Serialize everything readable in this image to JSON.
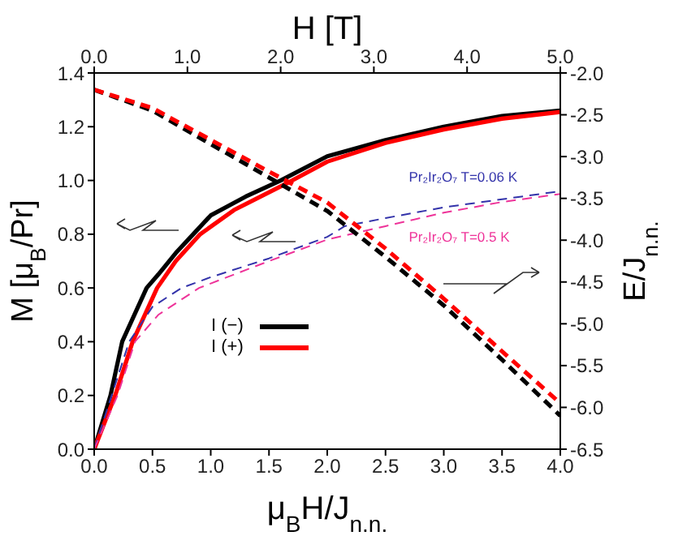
{
  "chart_data": {
    "type": "line",
    "xlabel": "μ$_{B}$H/J$_{n.n.}$",
    "ylabel": "M [μ$_{B}$/Pr]",
    "y2label": "E/J$_{n.n.}$",
    "x2label": "H [T]",
    "xlim": [
      0,
      4
    ],
    "xticks": [
      {
        "value": 0,
        "label": "0.0"
      },
      0.5,
      {
        "value": 1,
        "label": "1.0"
      },
      1.5,
      {
        "value": 2,
        "label": "2.0"
      },
      2.5,
      {
        "value": 3,
        "label": "3.0"
      },
      3.5,
      {
        "value": 4,
        "label": "4.0"
      }
    ],
    "x2lim": [
      0,
      5
    ],
    "x2ticks": [
      {
        "value": 0,
        "label": "0.0"
      },
      {
        "value": 1,
        "label": "1.0"
      },
      {
        "value": 2,
        "label": "2.0"
      },
      {
        "value": 3,
        "label": "3.0"
      },
      {
        "value": 4,
        "label": "4.0"
      },
      {
        "value": 5,
        "label": "5.0"
      }
    ],
    "ylim": [
      0,
      1.4
    ],
    "yticks": [
      {
        "value": 0,
        "label": "0.0"
      },
      0.2,
      0.4,
      0.6,
      0.8,
      {
        "value": 1,
        "label": "1.0"
      },
      1.2,
      1.4
    ],
    "y2lim": [
      -6.5,
      -2
    ],
    "y2ticks": [
      -6.5,
      {
        "value": -6,
        "label": "-6.0"
      },
      -5.5,
      {
        "value": -5,
        "label": "-5.0"
      },
      -4.5,
      {
        "value": -4,
        "label": "-4.0"
      },
      -3.5,
      {
        "value": -3,
        "label": "-3.0"
      },
      -2.5,
      {
        "value": -2,
        "label": "-2.0"
      }
    ],
    "legend": "center",
    "marker": "none",
    "series": [
      {
        "name": "I (−)",
        "color": "#000000",
        "line_style": "solid",
        "x": [
          0,
          0.14,
          0.24,
          0.45,
          0.55,
          0.7,
          0.85,
          1.0,
          1.3,
          1.6,
          2.0,
          2.5,
          3.0,
          3.5,
          4.0
        ],
        "values": [
          0,
          0.2,
          0.4,
          0.6,
          0.65,
          0.73,
          0.8,
          0.87,
          0.94,
          1.0,
          1.09,
          1.15,
          1.2,
          1.24,
          1.26
        ]
      },
      {
        "name": "I (+)",
        "color": "#ff0000",
        "line_style": "solid",
        "x": [
          0,
          0.18,
          0.33,
          0.54,
          0.7,
          0.91,
          1.2,
          1.7,
          2.0,
          2.5,
          3.0,
          3.5,
          4.0
        ],
        "values": [
          0,
          0.2,
          0.4,
          0.6,
          0.7,
          0.8,
          0.89,
          1.0,
          1.07,
          1.14,
          1.19,
          1.23,
          1.255
        ]
      },
      {
        "name": "Pr₂Ir₂O₇ T=0.06 K",
        "color": "#3333aa",
        "line_style": "dashed",
        "x": [
          0,
          0.15,
          0.3,
          0.5,
          0.75,
          1.0,
          1.5,
          2.0,
          2.15,
          2.5,
          3.0,
          3.5,
          4.0
        ],
        "values": [
          0,
          0.2,
          0.4,
          0.53,
          0.6,
          0.64,
          0.71,
          0.79,
          0.83,
          0.86,
          0.9,
          0.93,
          0.96
        ]
      },
      {
        "name": "Pr₂Ir₂O₇ T=0.5 K",
        "color": "#ee3399",
        "line_style": "dashed",
        "x": [
          0,
          0.2,
          0.35,
          0.55,
          0.9,
          1.5,
          2.0,
          2.5,
          3.0,
          3.5,
          4.0
        ],
        "values": [
          0,
          0.2,
          0.4,
          0.5,
          0.6,
          0.7,
          0.78,
          0.83,
          0.88,
          0.92,
          0.95
        ]
      },
      {
        "color": "#000000",
        "line_style": "dashed",
        "axis": "y2",
        "x": [
          0,
          0.5,
          1.0,
          1.5,
          2.0,
          2.5,
          3.0,
          3.5,
          4.0
        ],
        "values": [
          -2.2,
          -2.45,
          -2.85,
          -3.25,
          -3.65,
          -4.2,
          -4.78,
          -5.43,
          -6.1
        ]
      },
      {
        "color": "#ff0000",
        "line_style": "dashed",
        "axis": "y2",
        "x": [
          0,
          0.5,
          1.0,
          1.5,
          2.0,
          2.5,
          3.0,
          3.5,
          4.0
        ],
        "values": [
          -2.2,
          -2.42,
          -2.8,
          -3.18,
          -3.55,
          -4.1,
          -4.7,
          -5.33,
          -5.95
        ]
      }
    ]
  }
}
